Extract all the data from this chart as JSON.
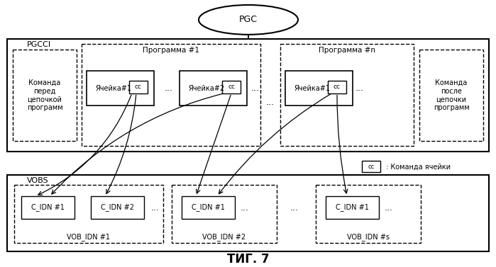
{
  "title": "ΤИГ. 7",
  "background_color": "#ffffff",
  "pgc_label": "PGC",
  "pgcci_label": "PGCCI",
  "vobs_label": "VOBS",
  "prog1_label": "Программа #1",
  "progn_label": "Программа #n",
  "cmd_before_label": "Команда\nперед\nцепочкой\nпрограмм",
  "cmd_after_label": "Команда\nпосле\nцепочки\nпрограмм",
  "cell1_p1_label": "Ячейка#1",
  "cell2_p1_label": "Ячейка#2",
  "cell1_pn_label": "Ячейка#1",
  "cc_label": "cc",
  "cc_cmd_label": "Команда ячейки",
  "vob1_c1_label": "C_IDN #1",
  "vob1_c2_label": "C_IDN #2",
  "vob2_c1_label": "C_IDN #1",
  "vobs_c1_label": "C_IDN #1",
  "vob1_label": "VOB_IDN #1",
  "vob2_label": "VOB_IDN #2",
  "vobs_label2": "VOB_IDN #s",
  "dots": "..."
}
